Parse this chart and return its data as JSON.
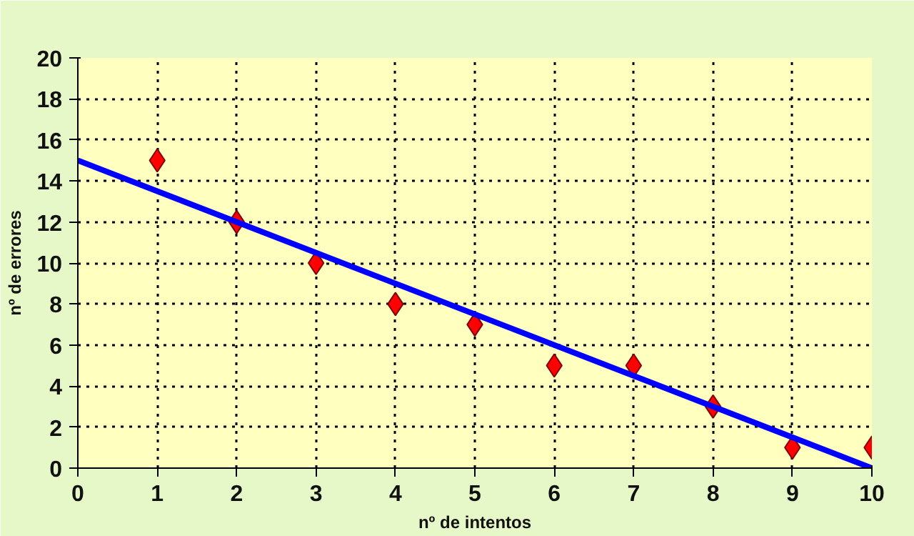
{
  "chart_data": {
    "type": "scatter",
    "xlabel": "nº de intentos",
    "ylabel": "nº de errores",
    "x": [
      1,
      2,
      3,
      4,
      5,
      6,
      7,
      8,
      9,
      10
    ],
    "series": [
      {
        "color": "#ff0000",
        "marker": "diamond",
        "values": [
          15,
          12,
          10,
          8,
          7,
          5,
          5,
          3,
          1,
          1
        ]
      },
      {
        "type": "line",
        "color": "#0000ff",
        "x": [
          0,
          10
        ],
        "values": [
          15,
          0
        ],
        "marker": "none",
        "line_style": "solid"
      }
    ],
    "xlim": [
      0,
      10
    ],
    "ylim": [
      0,
      20
    ],
    "xticks": [
      0,
      1,
      2,
      3,
      4,
      5,
      6,
      7,
      8,
      9,
      10
    ],
    "yticks": [
      0,
      2,
      4,
      6,
      8,
      10,
      12,
      14,
      16,
      18,
      20
    ],
    "grid": true
  }
}
